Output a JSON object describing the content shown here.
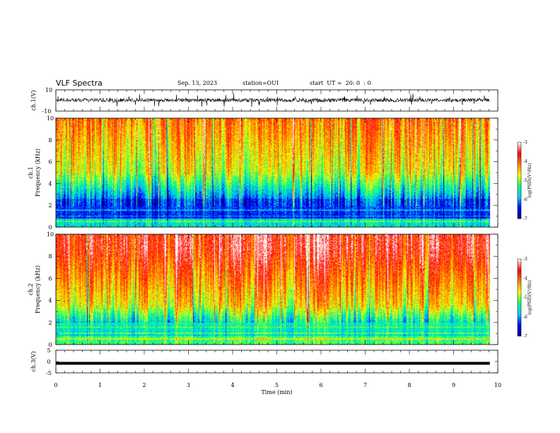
{
  "header": {
    "title": "VLF Spectra",
    "date": "Sep. 13, 2023",
    "station": "station=OUI",
    "start": "start  UT =  20: 0  : 0"
  },
  "chart_data": [
    {
      "id": "ch1-waveform",
      "type": "line",
      "ylabel": "ch.1(V)",
      "ylim": [
        -10,
        10
      ],
      "yticks": [
        "10",
        "-10"
      ],
      "xlim": [
        0,
        10
      ]
    },
    {
      "id": "ch1-spectrogram",
      "type": "heatmap",
      "ylabel_line1": "ch.1",
      "ylabel_line2": "Frequency  (kHz)",
      "ylim": [
        0,
        10
      ],
      "yticks": [
        "0",
        "2",
        "4",
        "6",
        "8",
        "10"
      ],
      "xlim": [
        0,
        10
      ],
      "data_end_min": 9.82,
      "colorbar": {
        "label": "log(PSD)(V²/Hz)",
        "range": [
          -7,
          -3
        ],
        "ticks": [
          "-3",
          "-4",
          "-5",
          "-6",
          "-7"
        ]
      }
    },
    {
      "id": "ch2-spectrogram",
      "type": "heatmap",
      "ylabel_line1": "ch.2",
      "ylabel_line2": "Frequency  (kHz)",
      "ylim": [
        0,
        10
      ],
      "yticks": [
        "0",
        "2",
        "4",
        "6",
        "8",
        "10"
      ],
      "xlim": [
        0,
        10
      ],
      "data_end_min": 9.82,
      "colorbar": {
        "label": "log(PSD)(V²/Hz)",
        "range": [
          -7,
          -3
        ],
        "ticks": [
          "-3",
          "-4",
          "-5",
          "-6",
          "-7"
        ]
      }
    },
    {
      "id": "ch3-waveform",
      "type": "line",
      "ylabel": "ch.3(V)",
      "ylim": [
        -5,
        5
      ],
      "yticks": [
        "5",
        "0",
        "-5"
      ],
      "xlim": [
        0,
        10
      ],
      "level_v": -0.8
    }
  ],
  "xaxis": {
    "label": "Time  (min)",
    "ticks": [
      "0",
      "1",
      "2",
      "3",
      "4",
      "5",
      "6",
      "7",
      "8",
      "9",
      "10"
    ]
  },
  "colors": {
    "colormap": [
      "#000080",
      "#0000ff",
      "#00c8ff",
      "#00ff80",
      "#ffff00",
      "#ff8000",
      "#ff0000",
      "#ffffff"
    ]
  }
}
